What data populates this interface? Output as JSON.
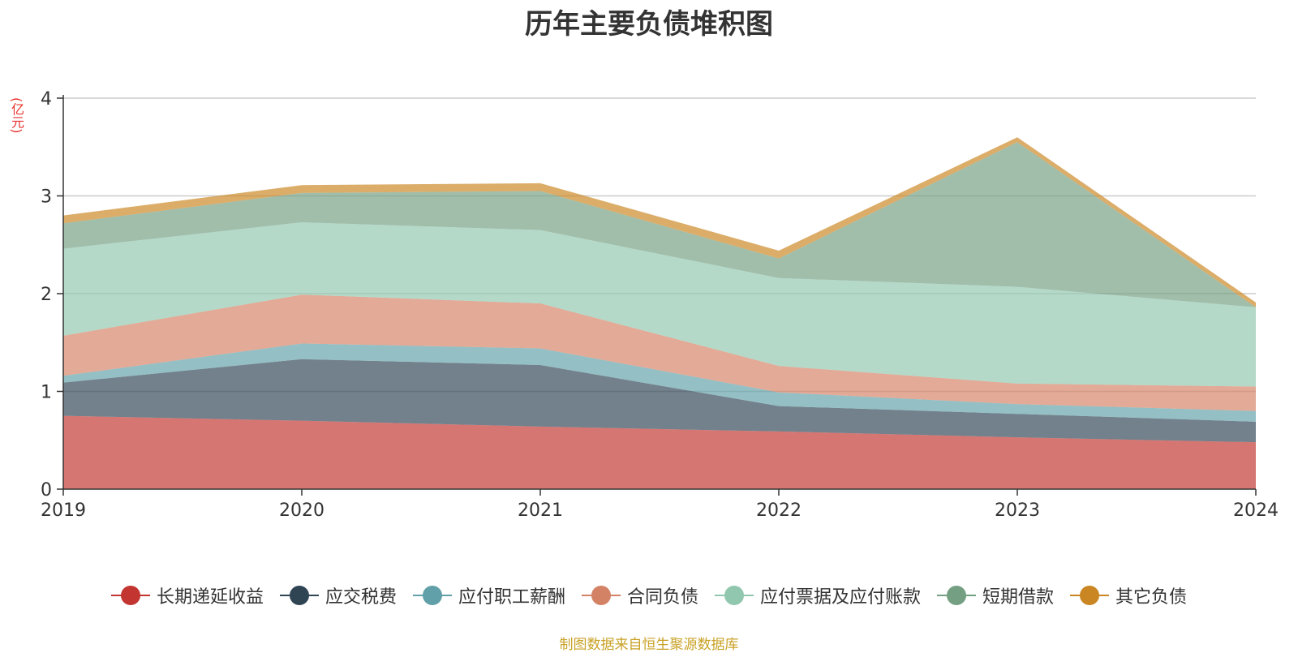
{
  "chart_data": {
    "type": "area",
    "stacked": true,
    "title": "历年主要负债堆积图",
    "unit": "(亿元)",
    "categories": [
      "2019",
      "2020",
      "2021",
      "2022",
      "2023",
      "2024"
    ],
    "ylim": [
      0,
      4
    ],
    "yticks": [
      0,
      1,
      2,
      3,
      4
    ],
    "grid": true,
    "legend_position": "bottom",
    "series": [
      {
        "name": "长期递延收益",
        "color": "#c23531",
        "values": [
          0.75,
          0.7,
          0.64,
          0.59,
          0.53,
          0.48
        ]
      },
      {
        "name": "应交税费",
        "color": "#2f4554",
        "values": [
          0.34,
          0.63,
          0.63,
          0.26,
          0.24,
          0.21
        ]
      },
      {
        "name": "应付职工薪酬",
        "color": "#61a0a8",
        "values": [
          0.07,
          0.16,
          0.17,
          0.14,
          0.1,
          0.11
        ]
      },
      {
        "name": "合同负债",
        "color": "#d48265",
        "values": [
          0.41,
          0.5,
          0.46,
          0.27,
          0.21,
          0.25
        ]
      },
      {
        "name": "应付票据及应付账款",
        "color": "#91c7ae",
        "values": [
          0.89,
          0.74,
          0.75,
          0.9,
          0.99,
          0.81
        ]
      },
      {
        "name": "短期借款",
        "color": "#749f83",
        "values": [
          0.26,
          0.3,
          0.4,
          0.2,
          1.48,
          0.0
        ]
      },
      {
        "name": "其它负债",
        "color": "#ca8622",
        "values": [
          0.08,
          0.08,
          0.08,
          0.08,
          0.05,
          0.05
        ]
      }
    ],
    "source": "制图数据来自恒生聚源数据库"
  }
}
